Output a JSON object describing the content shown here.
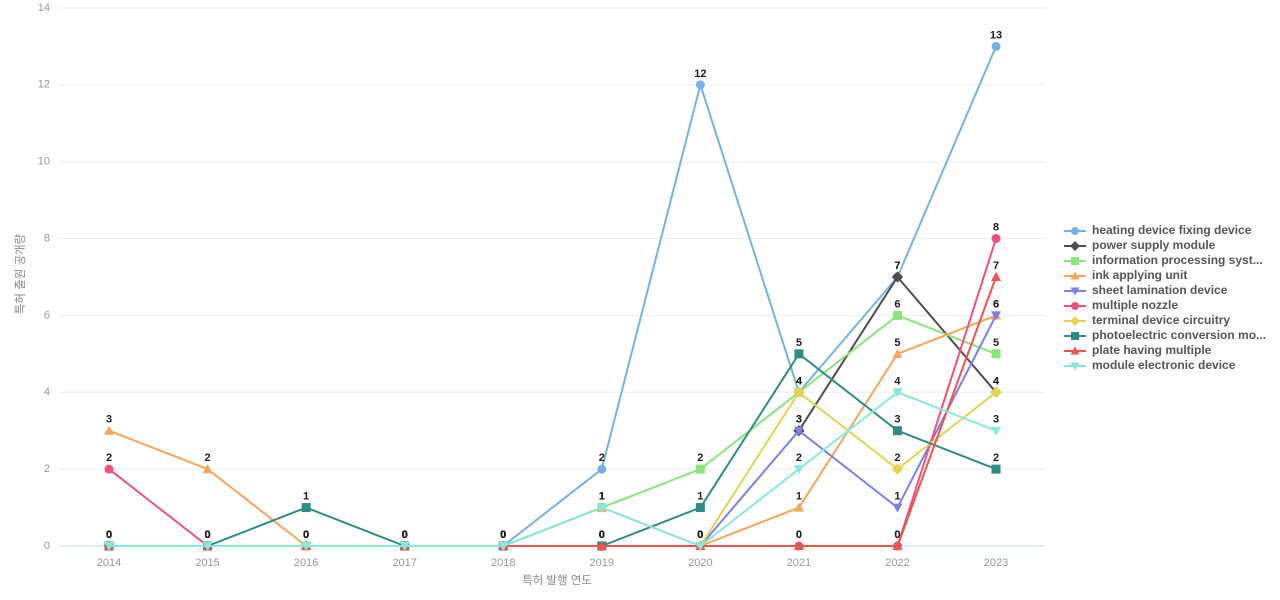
{
  "chart_data": {
    "type": "line",
    "x": [
      2014,
      2015,
      2016,
      2017,
      2018,
      2019,
      2020,
      2021,
      2022,
      2023
    ],
    "xlabel": "특허 발행 연도",
    "ylabel": "특허 출원 공개량",
    "ylim": [
      0,
      14
    ],
    "yticks": [
      0,
      2,
      4,
      6,
      8,
      10,
      12,
      14
    ],
    "grid": true,
    "legend_position": "right",
    "baseline_color": "#c9d4e6",
    "gridline_color": "#ededed",
    "series": [
      {
        "name": "heating device fixing device",
        "color": "#74B2E8",
        "marker": "circle",
        "values": [
          0,
          0,
          0,
          0,
          0,
          2,
          12,
          4,
          7,
          13
        ]
      },
      {
        "name": "power supply module",
        "color": "#4D4D4D",
        "marker": "diamond",
        "values": [
          null,
          null,
          null,
          null,
          null,
          null,
          null,
          3,
          7,
          4
        ]
      },
      {
        "name": "information processing syst...",
        "color": "#8BE47D",
        "marker": "square",
        "values": [
          0,
          0,
          0,
          0,
          0,
          1,
          2,
          4,
          6,
          5
        ]
      },
      {
        "name": "ink applying unit",
        "color": "#F6A55B",
        "marker": "triangle-up",
        "values": [
          3,
          2,
          0,
          0,
          0,
          1,
          0,
          1,
          5,
          6
        ]
      },
      {
        "name": "sheet lamination device",
        "color": "#7C80E8",
        "marker": "triangle-down",
        "values": [
          0,
          0,
          0,
          0,
          0,
          0,
          0,
          3,
          1,
          6
        ]
      },
      {
        "name": "multiple nozzle",
        "color": "#F0517E",
        "marker": "circle",
        "values": [
          2,
          0,
          0,
          0,
          0,
          0,
          0,
          0,
          0,
          8
        ]
      },
      {
        "name": "terminal device circuitry",
        "color": "#E5D351",
        "marker": "diamond",
        "values": [
          0,
          0,
          0,
          0,
          0,
          0,
          0,
          4,
          2,
          4
        ]
      },
      {
        "name": "photoelectric conversion mo...",
        "color": "#2F8C85",
        "marker": "square",
        "values": [
          0,
          0,
          1,
          0,
          0,
          0,
          1,
          5,
          3,
          2
        ]
      },
      {
        "name": "plate having multiple",
        "color": "#EF5350",
        "marker": "triangle-up",
        "values": [
          0,
          0,
          0,
          0,
          0,
          0,
          0,
          0,
          0,
          7
        ]
      },
      {
        "name": "module electronic device",
        "color": "#88E7DF",
        "marker": "triangle-down",
        "values": [
          0,
          0,
          0,
          0,
          0,
          1,
          0,
          2,
          4,
          3
        ]
      }
    ]
  }
}
